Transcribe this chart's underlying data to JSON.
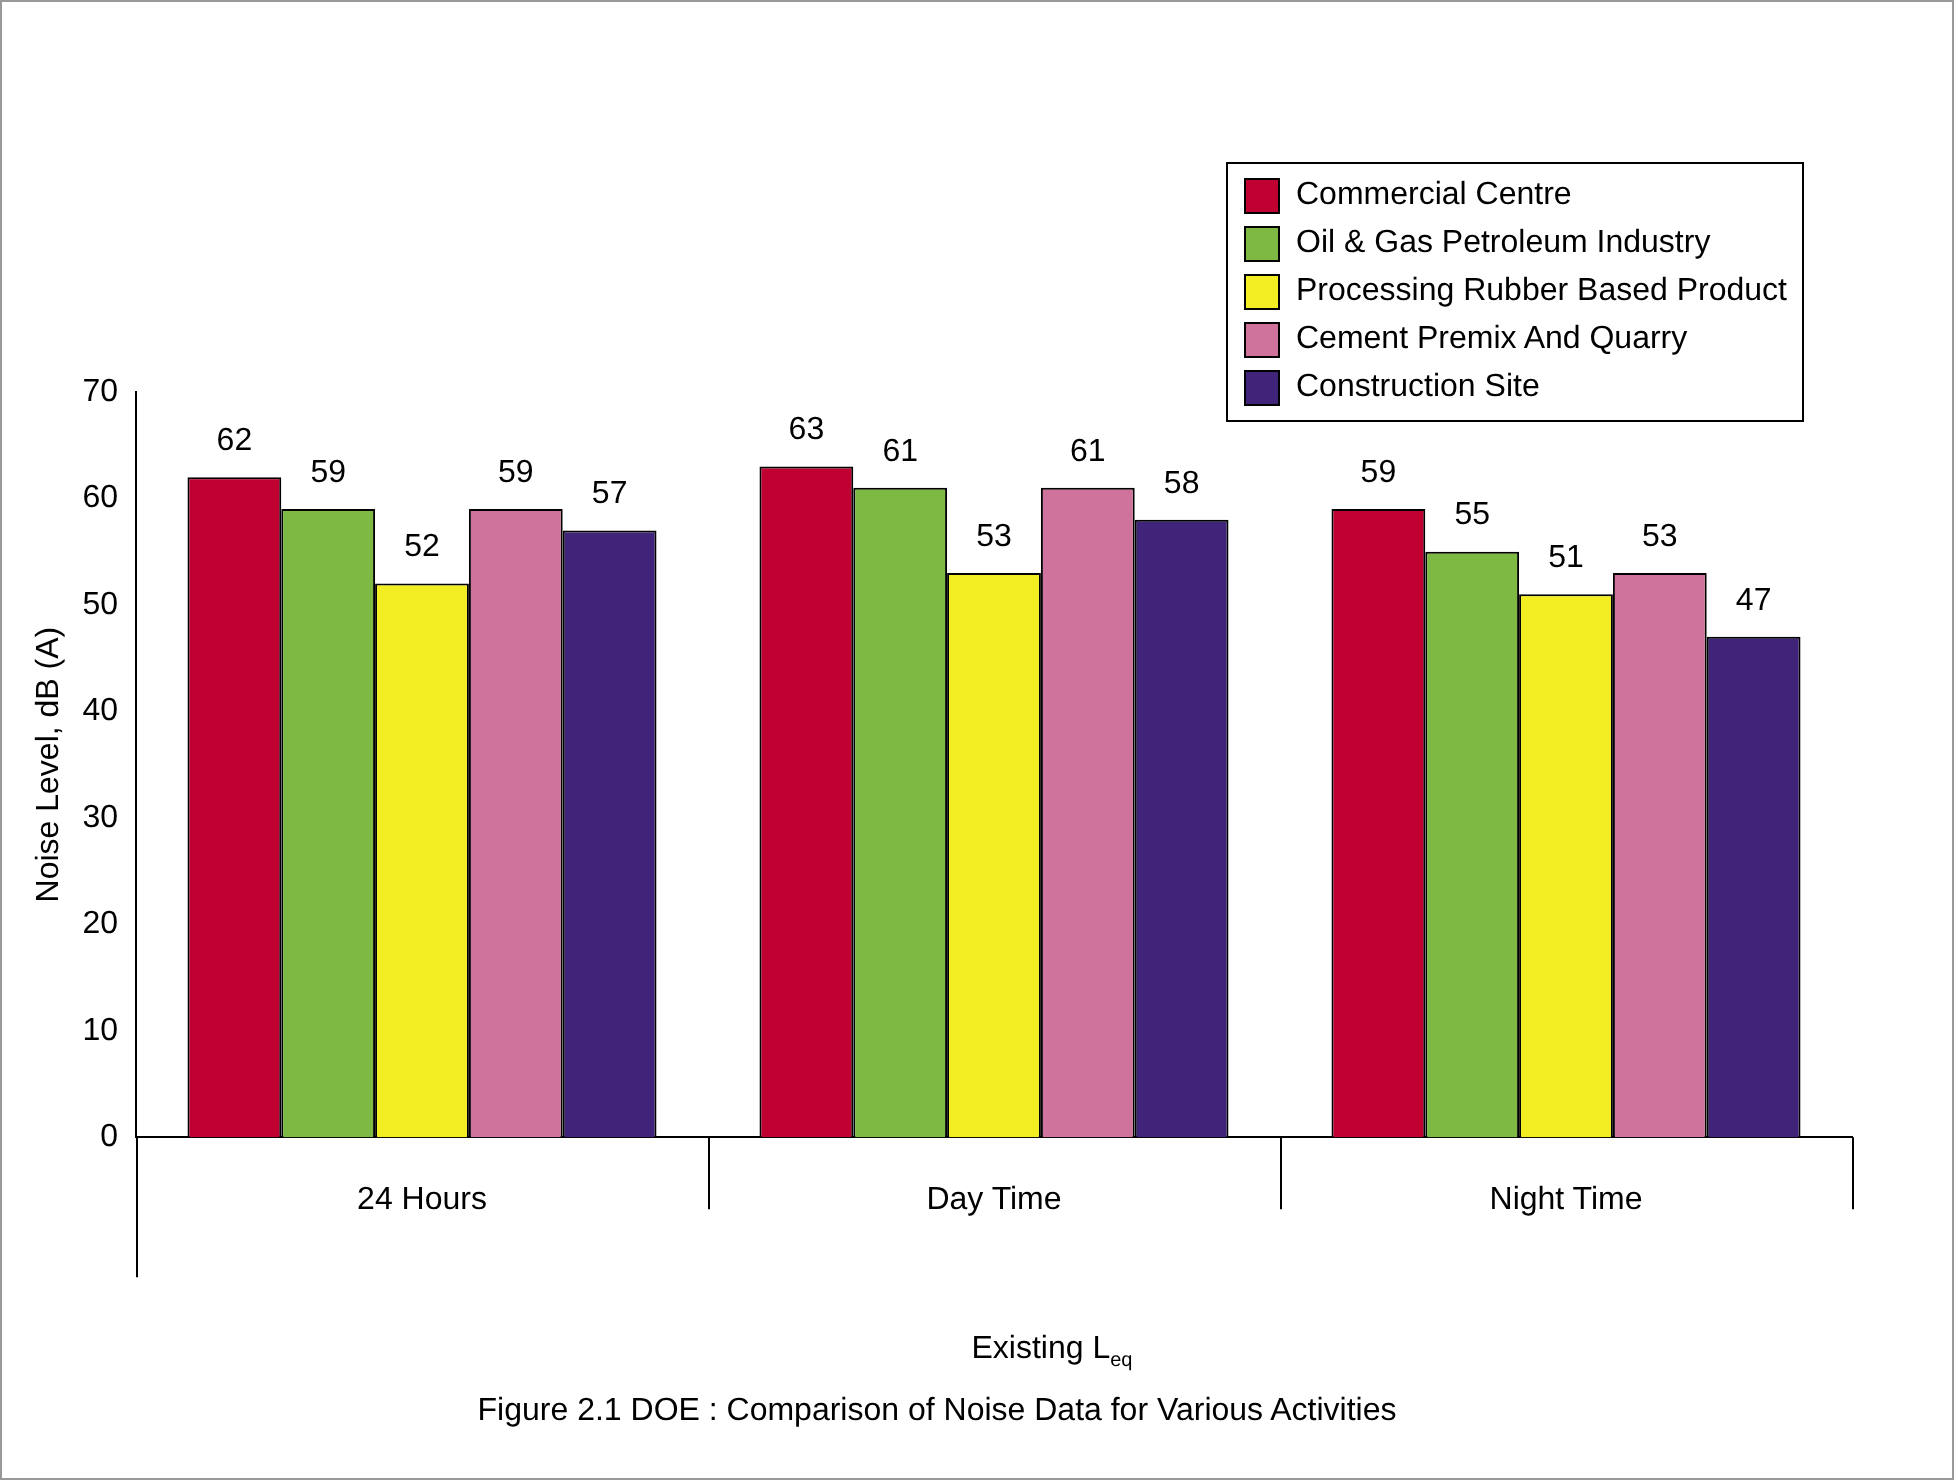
{
  "chart_data": {
    "type": "bar",
    "title": "Figure 2.1 DOE : Comparison of Noise Data for Various Activities",
    "xlabel": "Existing L$_{eq}$",
    "ylabel": "Noise Level, dB (A)",
    "categories": [
      "24 Hours",
      "Day Time",
      "Night Time"
    ],
    "series": [
      {
        "name": "Commercial Centre",
        "color": "#bf0030",
        "values": [
          62,
          63,
          59
        ]
      },
      {
        "name": "Oil & Gas Petroleum Industry",
        "color": "#7db943",
        "values": [
          59,
          61,
          55
        ]
      },
      {
        "name": "Processing Rubber Based Product",
        "color": "#f2ee22",
        "values": [
          52,
          53,
          51
        ]
      },
      {
        "name": "Cement Premix And Quarry",
        "color": "#d0739c",
        "values": [
          59,
          61,
          53
        ]
      },
      {
        "name": "Construction Site",
        "color": "#40247a",
        "values": [
          57,
          58,
          47
        ]
      }
    ],
    "ylim": [
      0,
      70
    ],
    "yticks": [
      0,
      10,
      20,
      30,
      40,
      50,
      60,
      70
    ],
    "grid": false,
    "legend": "top right",
    "data_labels": true
  }
}
